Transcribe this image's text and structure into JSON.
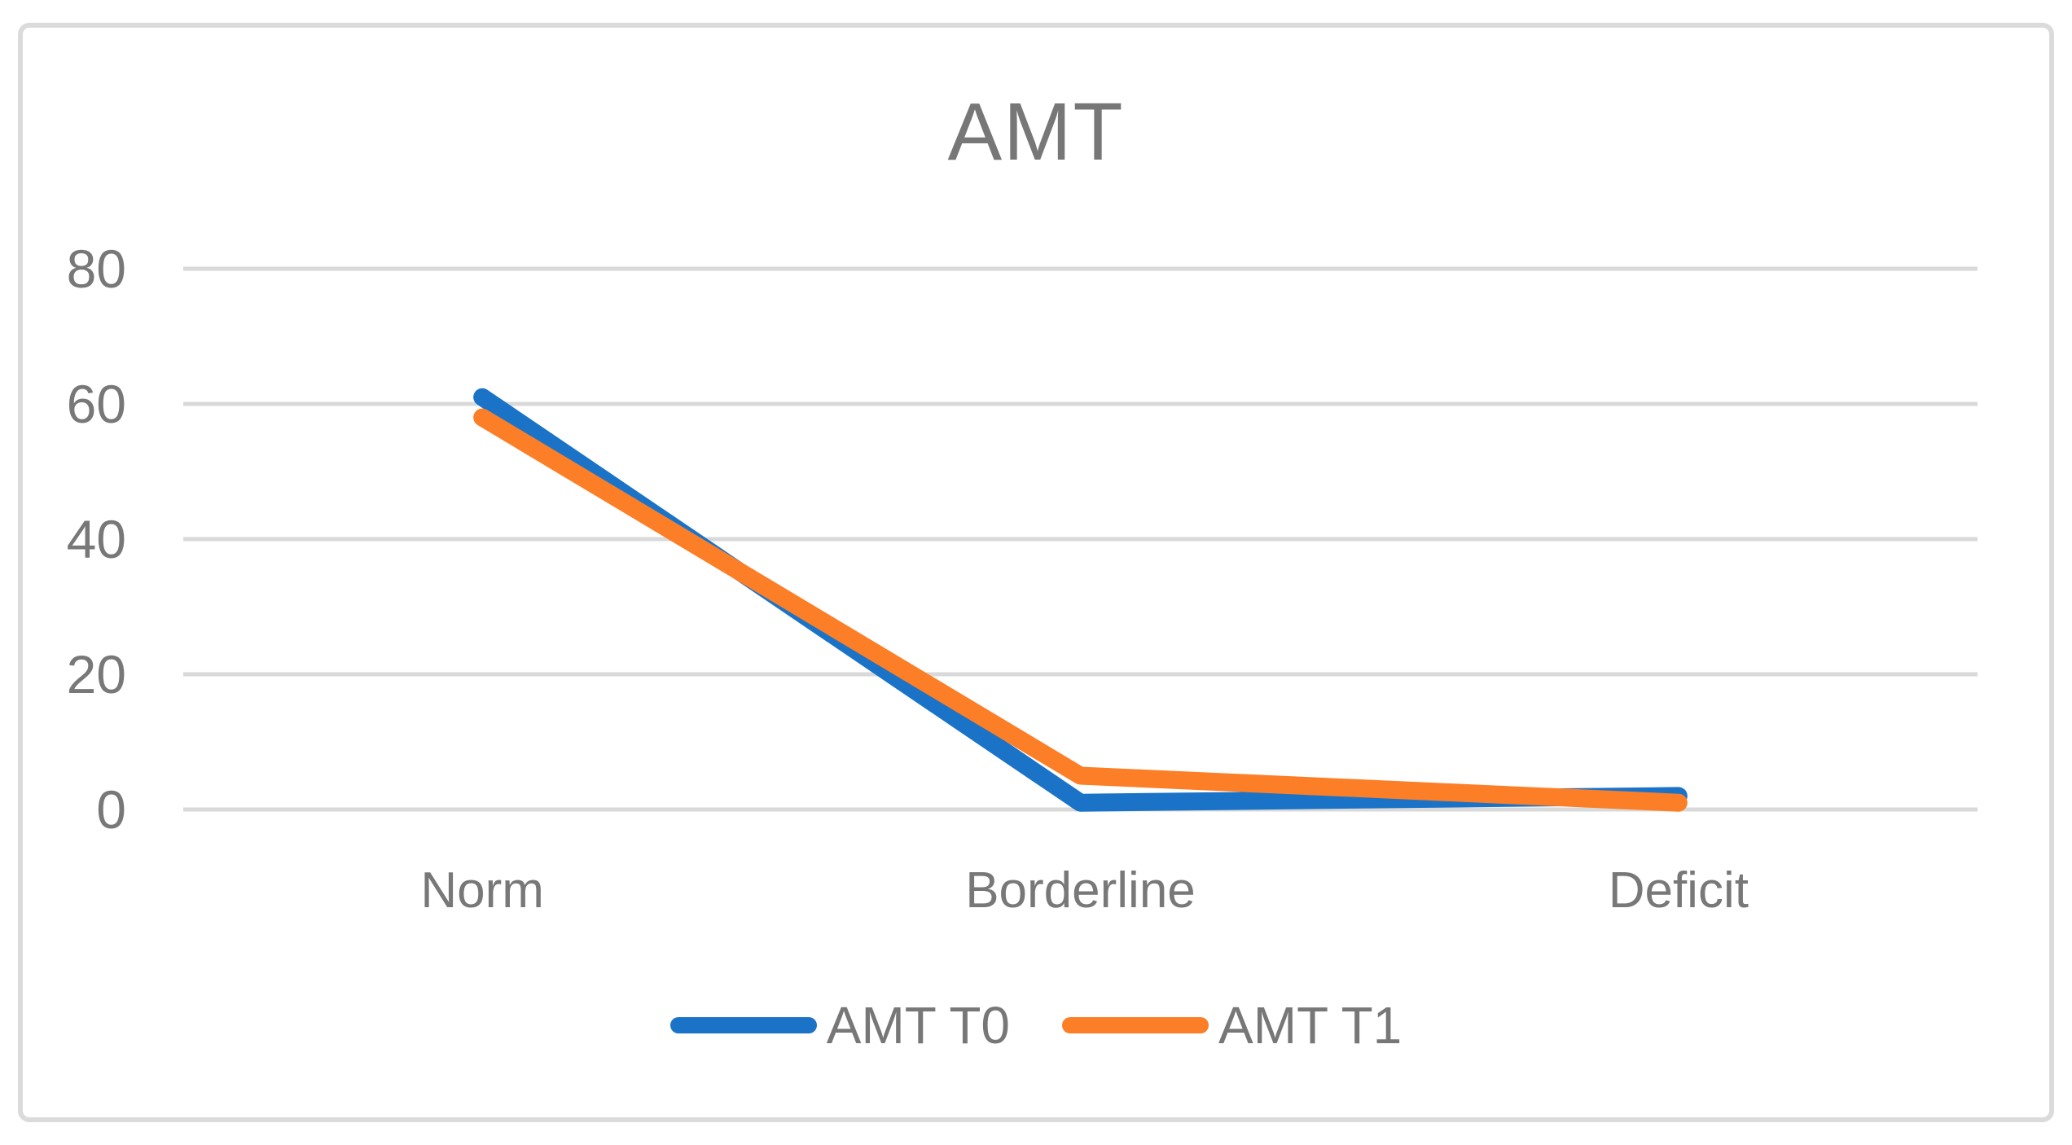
{
  "window": {
    "background_color": "#FFFFFF",
    "border_color": "#DBDBDB"
  },
  "chart_data": {
    "type": "line",
    "title": "AMT",
    "categories": [
      "Norm",
      "Borderline",
      "Deficit"
    ],
    "series": [
      {
        "name": "AMT T0",
        "color": "#1B73C8",
        "values": [
          61,
          1,
          2
        ]
      },
      {
        "name": "AMT T1",
        "color": "#FC7E26",
        "values": [
          58,
          5,
          1
        ]
      }
    ],
    "yticks": [
      0,
      20,
      40,
      60,
      80
    ],
    "ylim": [
      0,
      80
    ],
    "xlabel": "",
    "ylabel": "",
    "grid": true,
    "gridline_color": "#D9D9D9",
    "text_color": "#787878",
    "legend_position": "bottom"
  }
}
